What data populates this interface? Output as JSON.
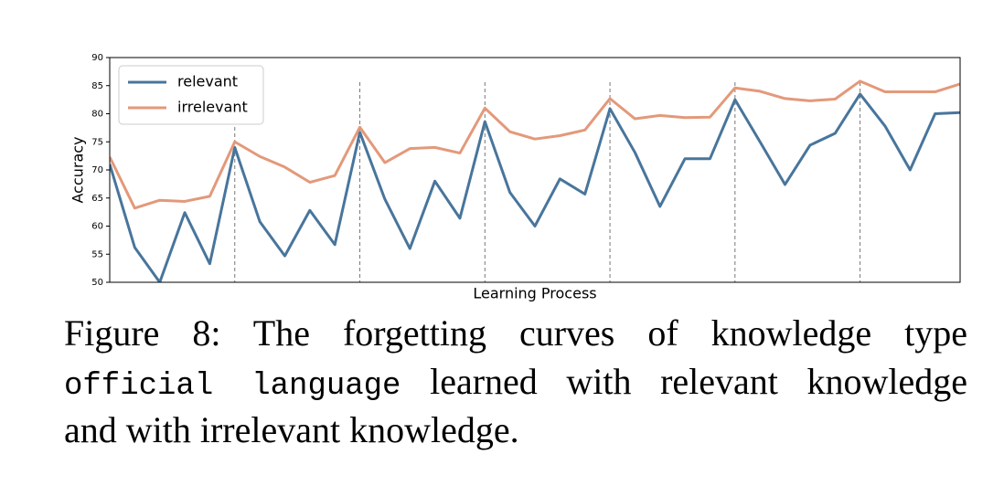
{
  "chart_data": {
    "type": "line",
    "x_label": "Learning Process",
    "y_label": "Accuracy",
    "categories": [
      null,
      null,
      null,
      null,
      null,
      null,
      null,
      null,
      null,
      null,
      null,
      null,
      null,
      null,
      null,
      null,
      null,
      null,
      null,
      null,
      null,
      null,
      null,
      null,
      null,
      null,
      null,
      null,
      null,
      null,
      null,
      null,
      null,
      null,
      null
    ],
    "series": [
      {
        "name": "relevant",
        "color": "#48759c",
        "values": [
          71,
          56.2,
          50,
          62.4,
          53.3,
          74,
          60.8,
          54.7,
          62.8,
          56.7,
          76.7,
          64.8,
          56,
          68,
          61.4,
          78.6,
          66,
          60,
          68.4,
          65.7,
          80.9,
          73.1,
          63.5,
          72,
          72,
          82.5,
          75,
          67.4,
          74.4,
          76.5,
          83.5,
          77.8,
          70,
          80,
          80.2
        ]
      },
      {
        "name": "irrelevant",
        "color": "#e3997a",
        "values": [
          72.3,
          63.2,
          64.6,
          64.4,
          65.3,
          75,
          72.4,
          70.5,
          67.8,
          69,
          77.6,
          71.3,
          73.8,
          74,
          73,
          81,
          76.8,
          75.5,
          76.1,
          77.1,
          82.7,
          79.1,
          79.7,
          79.3,
          79.4,
          84.6,
          84,
          82.7,
          82.3,
          82.6,
          85.8,
          83.9,
          83.9,
          83.9,
          85.3
        ]
      }
    ],
    "ylim": [
      50,
      90
    ],
    "yticks": [
      50,
      55,
      60,
      65,
      70,
      75,
      80,
      85,
      90
    ],
    "vlines": [
      5,
      10,
      15,
      20,
      25,
      30
    ],
    "legend": "upper-left"
  },
  "caption": {
    "line1": "Figure 8:  The forgetting curves of knowledge type",
    "code": "official language",
    "line2": "learned with relevant knowledge",
    "line3": "and with irrelevant knowledge."
  }
}
